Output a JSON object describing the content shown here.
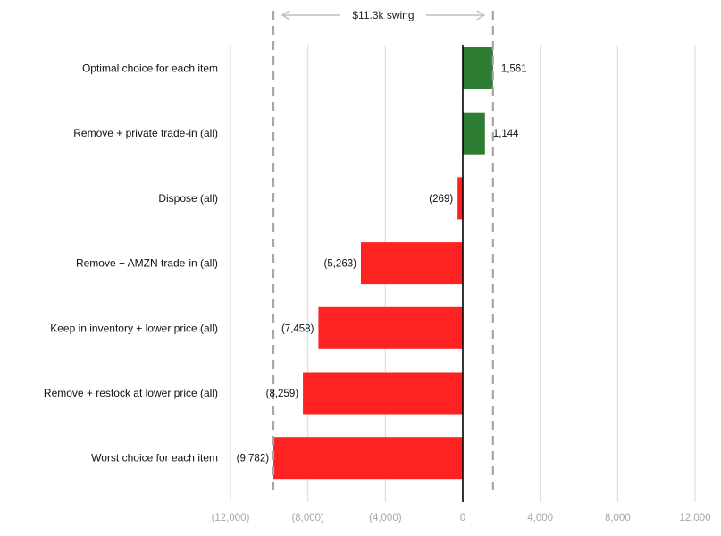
{
  "chart_data": {
    "type": "bar",
    "orientation": "horizontal",
    "categories": [
      "Optimal choice for each item",
      "Remove + private trade-in (all)",
      "Dispose (all)",
      "Remove + AMZN trade-in (all)",
      "Keep in inventory + lower price (all)",
      "Remove + restock at lower price (all)",
      "Worst choice for each item"
    ],
    "values": [
      1561,
      1144,
      -269,
      -5263,
      -7458,
      -8259,
      -9782
    ],
    "value_labels": [
      "1,561",
      "1,144",
      "(269)",
      "(5,263)",
      "(7,458)",
      "(8,259)",
      "(9,782)"
    ],
    "xlim": [
      -12000,
      12000
    ],
    "xticks": [
      -12000,
      -8000,
      -4000,
      0,
      4000,
      8000,
      12000
    ],
    "xtick_labels": [
      "(12,000)",
      "(8,000)",
      "(4,000)",
      "0",
      "4,000",
      "8,000",
      "12,000"
    ],
    "grid": true,
    "colors": {
      "positive": "#2e7d32",
      "negative": "#ff2222",
      "grid": "#d9d9d9",
      "dashed": "#a6a6a6"
    },
    "annotation": {
      "text": "$11.3k swing",
      "from": -9782,
      "to": 1561
    }
  }
}
